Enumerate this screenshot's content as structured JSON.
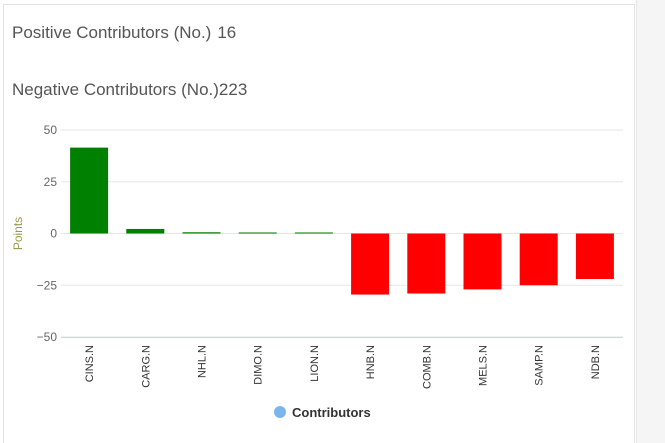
{
  "summary": {
    "positive_label": "Positive Contributors (No.)",
    "positive_value": "16",
    "negative_label": "Negative Contributors (No.)",
    "negative_value": "223"
  },
  "colors": {
    "positive": "#008000",
    "negative": "#ff0000",
    "legend_dot": "#7cb5ec",
    "axis_text": "#666666",
    "axis_title": "#99994d"
  },
  "chart_data": {
    "type": "bar",
    "categories": [
      "CINS.N",
      "CARG.N",
      "NHL.N",
      "DIMO.N",
      "LION.N",
      "HNB.N",
      "COMB.N",
      "MELS.N",
      "SAMP.N",
      "NDB.N"
    ],
    "series": [
      {
        "name": "Contributors",
        "values": [
          41.5,
          2.2,
          0.6,
          0.5,
          0.5,
          -29.5,
          -29.0,
          -27.0,
          -25.0,
          -22.0
        ]
      }
    ],
    "ylabel": "Points",
    "xlabel": "",
    "ylim": [
      -50,
      50
    ],
    "yticks": [
      50,
      25,
      0,
      -25,
      -50
    ],
    "ytick_labels": [
      "50",
      "25",
      "0",
      "−25",
      "−50"
    ],
    "grid": true,
    "legend": "bottom-center"
  }
}
